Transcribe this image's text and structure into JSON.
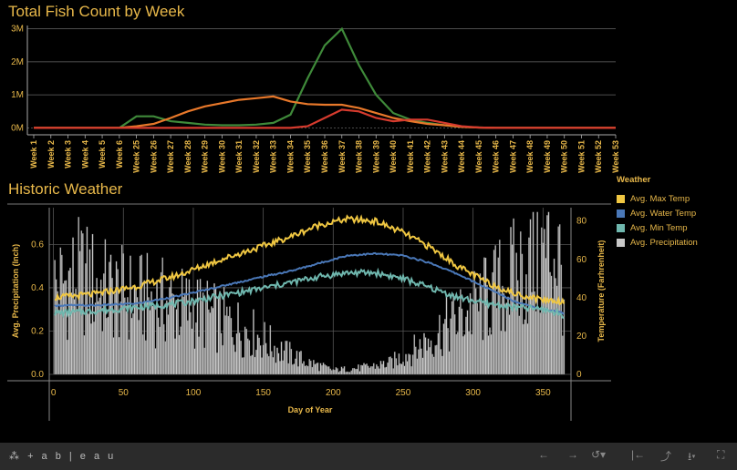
{
  "titles": {
    "fish": "Total Fish Count by Week",
    "weather": "Historic Weather"
  },
  "legend": {
    "title": "Weather",
    "items": [
      {
        "label": "Avg. Max Temp",
        "color": "#f0c742"
      },
      {
        "label": "Avg. Water Temp",
        "color": "#4a78b8"
      },
      {
        "label": "Avg. Min Temp",
        "color": "#6fb7ae"
      },
      {
        "label": "Avg. Precipitation",
        "color": "#c8c8c8"
      }
    ]
  },
  "footer": {
    "brand": "+ a b | e a u"
  },
  "chart_data": [
    {
      "type": "line",
      "title": "Total Fish Count by Week",
      "categories": [
        "Week 1",
        "Week 2",
        "Week 3",
        "Week 4",
        "Week 5",
        "Week 6",
        "Week 25",
        "Week 26",
        "Week 27",
        "Week 28",
        "Week 29",
        "Week 30",
        "Week 31",
        "Week 32",
        "Week 33",
        "Week 34",
        "Week 35",
        "Week 36",
        "Week 37",
        "Week 38",
        "Week 39",
        "Week 40",
        "Week 41",
        "Week 42",
        "Week 43",
        "Week 44",
        "Week 45",
        "Week 46",
        "Week 47",
        "Week 48",
        "Week 49",
        "Week 50",
        "Week 51",
        "Week 52",
        "Week 53"
      ],
      "y_ticks": [
        "0M",
        "1M",
        "2M",
        "3M"
      ],
      "ylim": [
        -0.1,
        3.1
      ],
      "series": [
        {
          "color": "#3f8a3a",
          "values": [
            0,
            0,
            0,
            0,
            0,
            0,
            0.35,
            0.35,
            0.2,
            0.15,
            0.1,
            0.08,
            0.08,
            0.1,
            0.15,
            0.4,
            1.5,
            2.5,
            3.0,
            1.9,
            1.0,
            0.45,
            0.25,
            0.15,
            0.08,
            0.03,
            0.01,
            0,
            0,
            0,
            0,
            0,
            0,
            0,
            0
          ]
        },
        {
          "color": "#e8782a",
          "values": [
            0,
            0,
            0,
            0,
            0,
            0,
            0.05,
            0.12,
            0.3,
            0.5,
            0.65,
            0.75,
            0.85,
            0.9,
            0.95,
            0.8,
            0.72,
            0.7,
            0.7,
            0.6,
            0.45,
            0.3,
            0.2,
            0.12,
            0.08,
            0.03,
            0.01,
            0,
            0,
            0,
            0,
            0,
            0,
            0,
            0
          ]
        },
        {
          "color": "#d63b2e",
          "values": [
            0,
            0,
            0,
            0,
            0,
            0,
            0,
            0,
            0,
            0,
            0,
            0,
            0,
            0,
            0,
            0,
            0.05,
            0.3,
            0.55,
            0.5,
            0.3,
            0.2,
            0.25,
            0.25,
            0.15,
            0.05,
            0.01,
            0,
            0,
            0,
            0,
            0,
            0,
            0,
            0
          ]
        }
      ]
    },
    {
      "type": "bar+line",
      "title": "Historic Weather",
      "xlabel": "Day of Year",
      "ylabel_left": "Avg. Precipitation (Inch)",
      "ylabel_right": "Temperature (Farhrenheit)",
      "x_ticks": [
        0,
        50,
        100,
        150,
        200,
        250,
        300,
        350
      ],
      "xlim": [
        -3,
        370
      ],
      "y_left_ticks": [
        "0.0",
        "0.2",
        "0.4",
        "0.6"
      ],
      "y_left_lim": [
        0,
        0.77
      ],
      "y_right_ticks": [
        "0",
        "20",
        "40",
        "60",
        "80"
      ],
      "y_right_lim": [
        0,
        87
      ],
      "series": [
        {
          "name": "Avg. Max Temp",
          "color": "#f0c742",
          "x": [
            0,
            30,
            60,
            90,
            120,
            150,
            170,
            190,
            210,
            230,
            250,
            270,
            290,
            310,
            330,
            350,
            365
          ],
          "y": [
            40,
            42,
            46,
            52,
            60,
            67,
            72,
            78,
            81,
            80,
            74,
            66,
            56,
            48,
            42,
            39,
            38
          ]
        },
        {
          "name": "Avg. Water Temp",
          "color": "#4a78b8",
          "x": [
            0,
            30,
            60,
            90,
            120,
            150,
            170,
            190,
            210,
            230,
            250,
            270,
            290,
            310,
            330,
            350,
            365
          ],
          "y": [
            36,
            36,
            37,
            41,
            46,
            51,
            54,
            58,
            62,
            63,
            62,
            58,
            52,
            45,
            38,
            34,
            32
          ]
        },
        {
          "name": "Avg. Min Temp",
          "color": "#6fb7ae",
          "x": [
            0,
            30,
            60,
            90,
            120,
            150,
            170,
            190,
            210,
            230,
            250,
            270,
            290,
            310,
            330,
            350,
            365
          ],
          "y": [
            32,
            33,
            35,
            37,
            41,
            45,
            48,
            51,
            53,
            53,
            50,
            45,
            40,
            37,
            35,
            34,
            31
          ]
        },
        {
          "name": "Avg. Precipitation",
          "color": "#c8c8c8",
          "x": [
            0,
            20,
            40,
            60,
            80,
            100,
            120,
            140,
            160,
            180,
            200,
            220,
            240,
            260,
            280,
            300,
            320,
            340,
            360,
            365
          ],
          "y": [
            0.4,
            0.45,
            0.38,
            0.35,
            0.33,
            0.3,
            0.25,
            0.2,
            0.12,
            0.06,
            0.02,
            0.03,
            0.05,
            0.12,
            0.22,
            0.3,
            0.4,
            0.5,
            0.58,
            0.4
          ]
        }
      ]
    }
  ]
}
